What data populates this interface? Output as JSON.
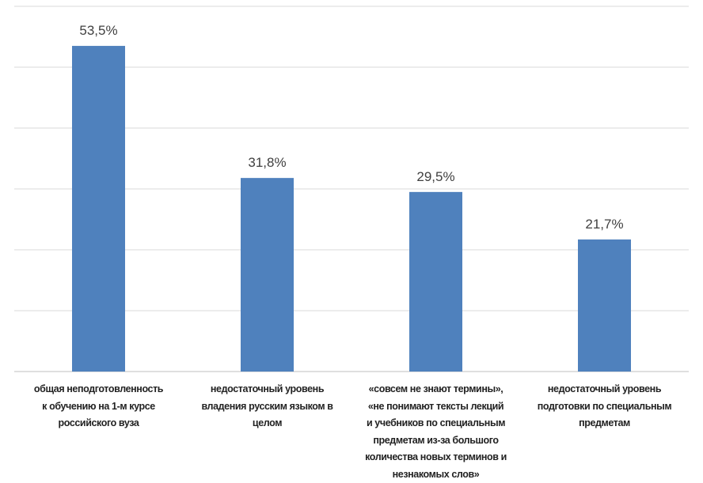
{
  "chart_data": {
    "type": "bar",
    "title": "",
    "xlabel": "",
    "ylabel": "",
    "ylim": [
      0,
      60
    ],
    "grid": true,
    "legend": "none",
    "categories": [
      [
        "общая неподготовленность",
        "к обучению на 1-м курсе",
        "российского вуза"
      ],
      [
        "недостаточный уровень",
        "владения русским языком в",
        "целом"
      ],
      [
        "«совсем не знают термины»,",
        "«не понимают тексты лекций",
        "и учебников по специальным",
        "предметам из-за большого",
        "количества новых терминов и",
        "незнакомых слов»"
      ],
      [
        "недостаточный уровень",
        "подготовки по специальным",
        "предметам"
      ]
    ],
    "values": [
      53.5,
      31.8,
      29.5,
      21.7
    ],
    "data_labels": [
      "53,5%",
      "31,8%",
      "29,5%",
      "21,7%"
    ],
    "colors": {
      "bar": "#4f81bd",
      "grid": "#d9d9d9",
      "axis": "#bfbfbf",
      "text": "#404040"
    }
  }
}
